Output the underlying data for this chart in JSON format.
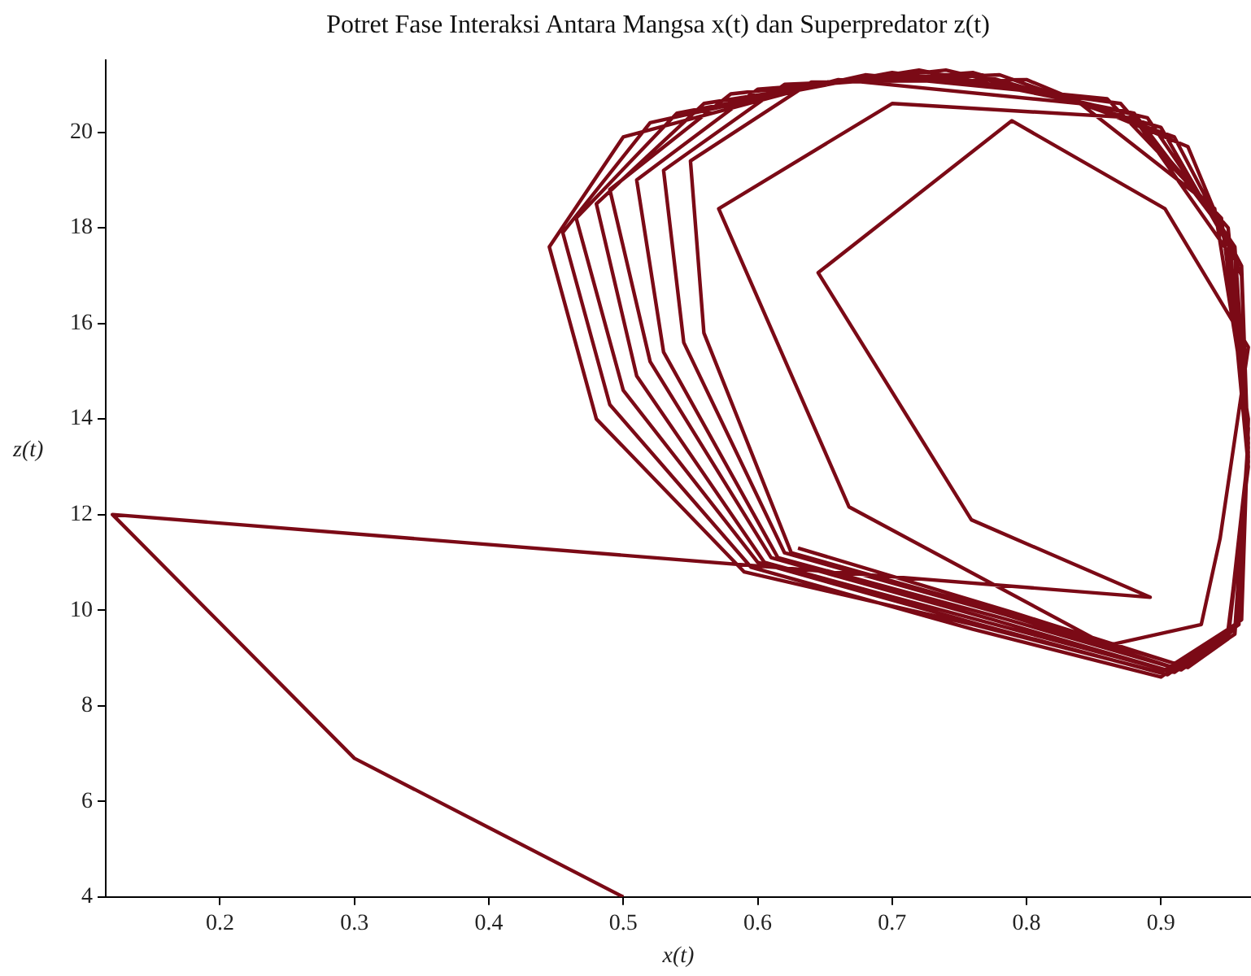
{
  "chart_data": {
    "type": "line",
    "title": "Potret Fase Interaksi Antara Mangsa x(t) dan Superpredator z(t)",
    "xlabel": "x(t)",
    "ylabel": "z(t)",
    "color": "#7b0a16",
    "marker": "none",
    "line_style": "solid",
    "grid": false,
    "legend": false,
    "xlim": [
      0.115,
      0.967
    ],
    "xticks": [
      0.2,
      0.3,
      0.4,
      0.5,
      0.6,
      0.7,
      0.8,
      0.9
    ],
    "ylim": [
      4,
      21.5
    ],
    "yticks": [
      4,
      6,
      8,
      10,
      12,
      14,
      16,
      18,
      20
    ],
    "x": [
      0.5,
      0.3,
      0.12,
      0.892,
      0.759,
      0.645,
      0.789,
      0.903,
      0.965,
      0.944,
      0.93,
      0.86,
      0.668,
      0.571,
      0.7,
      0.88,
      0.95,
      0.965,
      0.95,
      0.9,
      0.76,
      0.59,
      0.48,
      0.445,
      0.5,
      0.66,
      0.84,
      0.94,
      0.965,
      0.96,
      0.9,
      0.76,
      0.595,
      0.49,
      0.455,
      0.52,
      0.68,
      0.86,
      0.945,
      0.965,
      0.958,
      0.905,
      0.765,
      0.6,
      0.5,
      0.465,
      0.54,
      0.7,
      0.87,
      0.95,
      0.965,
      0.955,
      0.91,
      0.77,
      0.605,
      0.51,
      0.48,
      0.56,
      0.72,
      0.88,
      0.95,
      0.965,
      0.955,
      0.91,
      0.775,
      0.61,
      0.52,
      0.49,
      0.58,
      0.74,
      0.89,
      0.955,
      0.965,
      0.955,
      0.915,
      0.78,
      0.615,
      0.53,
      0.51,
      0.6,
      0.76,
      0.9,
      0.955,
      0.965,
      0.95,
      0.915,
      0.785,
      0.62,
      0.545,
      0.53,
      0.62,
      0.78,
      0.91,
      0.96,
      0.965,
      0.95,
      0.92,
      0.79,
      0.625,
      0.56,
      0.55,
      0.64,
      0.8,
      0.92,
      0.96,
      0.965,
      0.95,
      0.92,
      0.79,
      0.63
    ],
    "values": [
      4,
      6.9,
      12,
      10.27,
      11.89,
      17.06,
      20.24,
      18.4,
      15.5,
      11.5,
      9.7,
      9.26,
      12.16,
      18.4,
      20.6,
      20.3,
      17.5,
      13,
      9.6,
      8.7,
      9.7,
      10.8,
      14.0,
      17.6,
      19.9,
      21.1,
      20.6,
      18.4,
      14.0,
      9.8,
      8.6,
      9.6,
      10.9,
      14.3,
      17.9,
      20.2,
      21.2,
      20.7,
      18.2,
      13.8,
      9.7,
      8.65,
      9.7,
      11.0,
      14.6,
      18.2,
      20.4,
      21.25,
      20.6,
      18.0,
      13.6,
      9.6,
      8.7,
      9.75,
      11.0,
      14.9,
      18.5,
      20.6,
      21.3,
      20.4,
      17.8,
      13.5,
      9.6,
      8.7,
      9.8,
      11.1,
      15.2,
      18.8,
      20.8,
      21.3,
      20.3,
      17.6,
      13.4,
      9.5,
      8.75,
      9.85,
      11.1,
      15.4,
      19.0,
      20.9,
      21.25,
      20.1,
      17.4,
      13.3,
      9.5,
      8.75,
      9.9,
      11.2,
      15.6,
      19.2,
      21.0,
      21.2,
      19.9,
      17.2,
      13.2,
      9.45,
      8.8,
      9.9,
      11.2,
      15.8,
      19.4,
      21.05,
      21.1,
      19.7,
      17.0,
      13.1,
      9.4,
      8.8,
      9.95,
      11.3
    ]
  }
}
